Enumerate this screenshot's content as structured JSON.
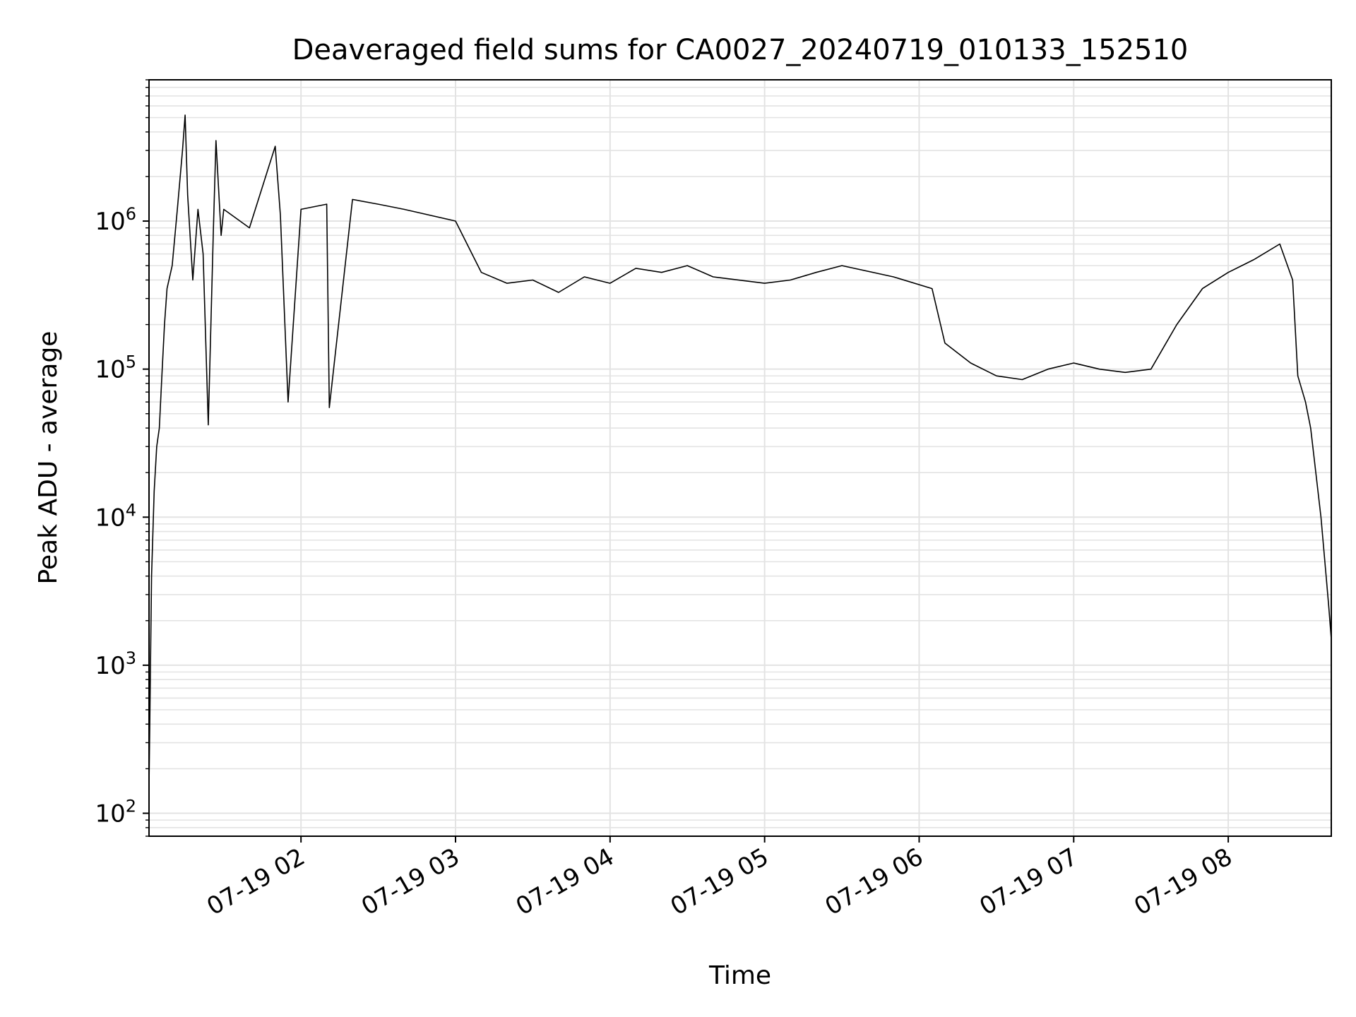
{
  "chart_data": {
    "type": "line",
    "title": "Deaveraged field sums for CA0027_20240719_010133_152510",
    "xlabel": "Time",
    "ylabel": "Peak ADU - average",
    "yscale": "log",
    "ylim": [
      70,
      9000000
    ],
    "xlim": [
      "07-19 01:01",
      "07-19 08:40"
    ],
    "grid": true,
    "x_ticks": [
      {
        "t": "07-19 02:00",
        "label": "07-19 02"
      },
      {
        "t": "07-19 03:00",
        "label": "07-19 03"
      },
      {
        "t": "07-19 04:00",
        "label": "07-19 04"
      },
      {
        "t": "07-19 05:00",
        "label": "07-19 05"
      },
      {
        "t": "07-19 06:00",
        "label": "07-19 06"
      },
      {
        "t": "07-19 07:00",
        "label": "07-19 07"
      },
      {
        "t": "07-19 08:00",
        "label": "07-19 08"
      }
    ],
    "y_ticks": [
      {
        "v": 100,
        "base": "10",
        "exp": "2"
      },
      {
        "v": 1000,
        "base": "10",
        "exp": "3"
      },
      {
        "v": 10000,
        "base": "10",
        "exp": "4"
      },
      {
        "v": 100000,
        "base": "10",
        "exp": "5"
      },
      {
        "v": 1000000,
        "base": "10",
        "exp": "6"
      }
    ],
    "series": [
      {
        "color": "#000000",
        "points": [
          [
            "07-19 01:01",
            150
          ],
          [
            "07-19 01:02",
            4000
          ],
          [
            "07-19 01:03",
            15000
          ],
          [
            "07-19 01:04",
            30000
          ],
          [
            "07-19 01:05",
            40000
          ],
          [
            "07-19 01:06",
            90000
          ],
          [
            "07-19 01:07",
            200000
          ],
          [
            "07-19 01:08",
            350000
          ],
          [
            "07-19 01:10",
            500000
          ],
          [
            "07-19 01:12",
            1200000
          ],
          [
            "07-19 01:14",
            3000000
          ],
          [
            "07-19 01:15",
            5200000
          ],
          [
            "07-19 01:16",
            1500000
          ],
          [
            "07-19 01:18",
            400000
          ],
          [
            "07-19 01:20",
            1200000
          ],
          [
            "07-19 01:22",
            600000
          ],
          [
            "07-19 01:24",
            42000
          ],
          [
            "07-19 01:26",
            900000
          ],
          [
            "07-19 01:27",
            3500000
          ],
          [
            "07-19 01:29",
            800000
          ],
          [
            "07-19 01:30",
            1200000
          ],
          [
            "07-19 01:40",
            900000
          ],
          [
            "07-19 01:50",
            3200000
          ],
          [
            "07-19 01:52",
            1100000
          ],
          [
            "07-19 01:55",
            60000
          ],
          [
            "07-19 02:00",
            1200000
          ],
          [
            "07-19 02:10",
            1300000
          ],
          [
            "07-19 02:11",
            55000
          ],
          [
            "07-19 02:20",
            1400000
          ],
          [
            "07-19 02:30",
            1300000
          ],
          [
            "07-19 02:40",
            1200000
          ],
          [
            "07-19 03:00",
            1000000
          ],
          [
            "07-19 03:10",
            450000
          ],
          [
            "07-19 03:20",
            380000
          ],
          [
            "07-19 03:30",
            400000
          ],
          [
            "07-19 03:40",
            330000
          ],
          [
            "07-19 03:50",
            420000
          ],
          [
            "07-19 04:00",
            380000
          ],
          [
            "07-19 04:10",
            480000
          ],
          [
            "07-19 04:20",
            450000
          ],
          [
            "07-19 04:30",
            500000
          ],
          [
            "07-19 04:40",
            420000
          ],
          [
            "07-19 05:00",
            380000
          ],
          [
            "07-19 05:10",
            400000
          ],
          [
            "07-19 05:20",
            450000
          ],
          [
            "07-19 05:30",
            500000
          ],
          [
            "07-19 05:50",
            420000
          ],
          [
            "07-19 06:05",
            350000
          ],
          [
            "07-19 06:10",
            150000
          ],
          [
            "07-19 06:20",
            110000
          ],
          [
            "07-19 06:30",
            90000
          ],
          [
            "07-19 06:40",
            85000
          ],
          [
            "07-19 06:50",
            100000
          ],
          [
            "07-19 07:00",
            110000
          ],
          [
            "07-19 07:10",
            100000
          ],
          [
            "07-19 07:20",
            95000
          ],
          [
            "07-19 07:30",
            100000
          ],
          [
            "07-19 07:40",
            200000
          ],
          [
            "07-19 07:50",
            350000
          ],
          [
            "07-19 08:00",
            450000
          ],
          [
            "07-19 08:10",
            550000
          ],
          [
            "07-19 08:20",
            700000
          ],
          [
            "07-19 08:25",
            400000
          ],
          [
            "07-19 08:27",
            90000
          ],
          [
            "07-19 08:30",
            60000
          ],
          [
            "07-19 08:32",
            40000
          ],
          [
            "07-19 08:34",
            20000
          ],
          [
            "07-19 08:36",
            10000
          ],
          [
            "07-19 08:38",
            4000
          ],
          [
            "07-19 08:39",
            2500
          ],
          [
            "07-19 08:40",
            1500
          ]
        ]
      }
    ]
  }
}
